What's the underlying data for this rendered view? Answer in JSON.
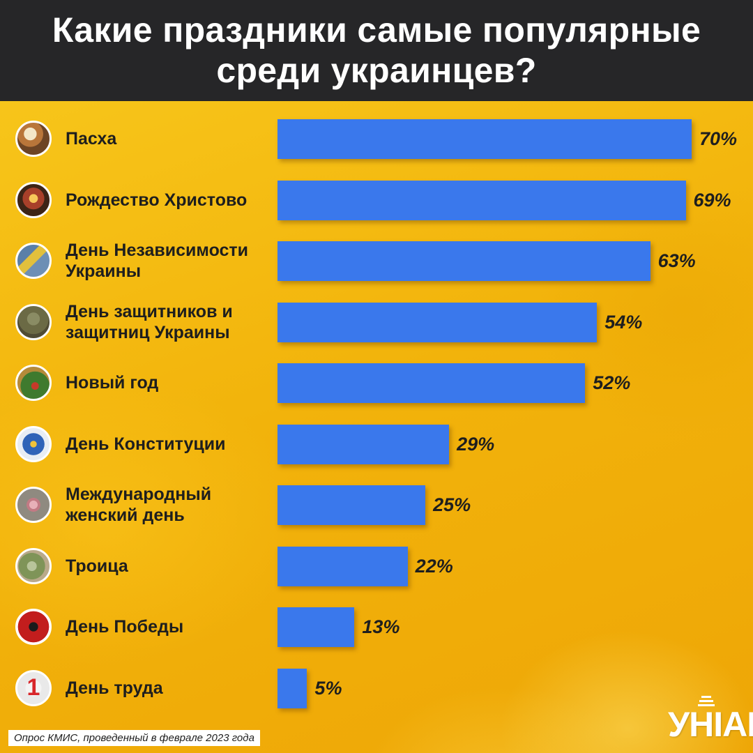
{
  "title": "Какие праздники самые популярные среди украинцев?",
  "source": "Опрос КМИС, проведенный в феврале 2023 года",
  "logo": "УНІАН",
  "chart_data": {
    "type": "bar",
    "orientation": "horizontal",
    "title": "Какие праздники самые популярные среди украинцев?",
    "unit": "%",
    "xlim": [
      0,
      70
    ],
    "categories": [
      "Пасха",
      "Рождество Христово",
      "День Независимости Украины",
      "День защитников и защитниц Украины",
      "Новый год",
      "День Конституции",
      "Международный женский день",
      "Троица",
      "День Победы",
      "День труда"
    ],
    "label_lines": [
      [
        "Пасха"
      ],
      [
        "Рождество Христово"
      ],
      [
        "День Независимости",
        "Украины"
      ],
      [
        "День защитников и",
        "защитниц Украины"
      ],
      [
        "Новый год"
      ],
      [
        "День Конституции"
      ],
      [
        "Международный",
        "женский день"
      ],
      [
        "Троица"
      ],
      [
        "День Победы"
      ],
      [
        "День труда"
      ]
    ],
    "values": [
      70,
      69,
      63,
      54,
      52,
      29,
      25,
      22,
      13,
      5
    ],
    "value_labels": [
      "70%",
      "69%",
      "63%",
      "54%",
      "52%",
      "29%",
      "25%",
      "22%",
      "13%",
      "5%"
    ],
    "icons": [
      "easter-cake-icon",
      "nativity-icon",
      "flag-icon",
      "soldier-icon",
      "christmas-tree-icon",
      "trident-map-icon",
      "ribbon-icon",
      "greenery-icon",
      "poppy-icon",
      "number-one-icon"
    ],
    "bar_color": "#3a78ec",
    "grid": false,
    "legend": "none"
  }
}
